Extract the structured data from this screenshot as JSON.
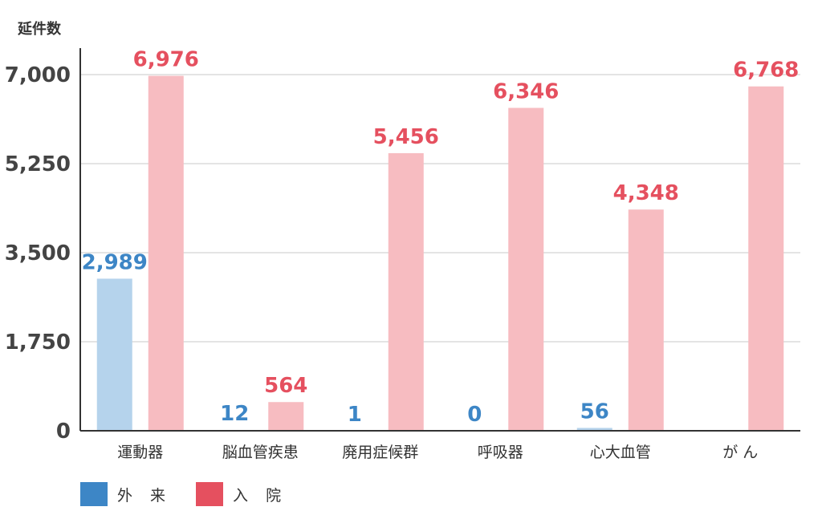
{
  "chart_data": {
    "type": "bar",
    "ylabel": "延件数",
    "ylim": [
      0,
      7000
    ],
    "yticks": [
      0,
      1750,
      3500,
      5250,
      7000
    ],
    "ytick_labels": [
      "0",
      "1,750",
      "3,500",
      "5,250",
      "7,000"
    ],
    "grid": true,
    "legend_position": "bottom-left",
    "categories": [
      "運動器",
      "脳血管疾患",
      "廃用症候群",
      "呼吸器",
      "心大血管",
      "が ん"
    ],
    "series": [
      {
        "name": "外 来",
        "values": [
          2989,
          12,
          1,
          0,
          56,
          null
        ],
        "labels": [
          "2,989",
          "12",
          "1",
          "0",
          "56",
          ""
        ],
        "color": "#b5d3ec",
        "label_color": "#3d86c6",
        "legend_color": "#3d86c6"
      },
      {
        "name": "入 院",
        "values": [
          6976,
          564,
          5456,
          6346,
          4348,
          6768
        ],
        "labels": [
          "6,976",
          "564",
          "5,456",
          "6,346",
          "4,348",
          "6,768"
        ],
        "color": "#f7bcc1",
        "label_color": "#e5505f",
        "legend_color": "#e5505f"
      }
    ]
  }
}
